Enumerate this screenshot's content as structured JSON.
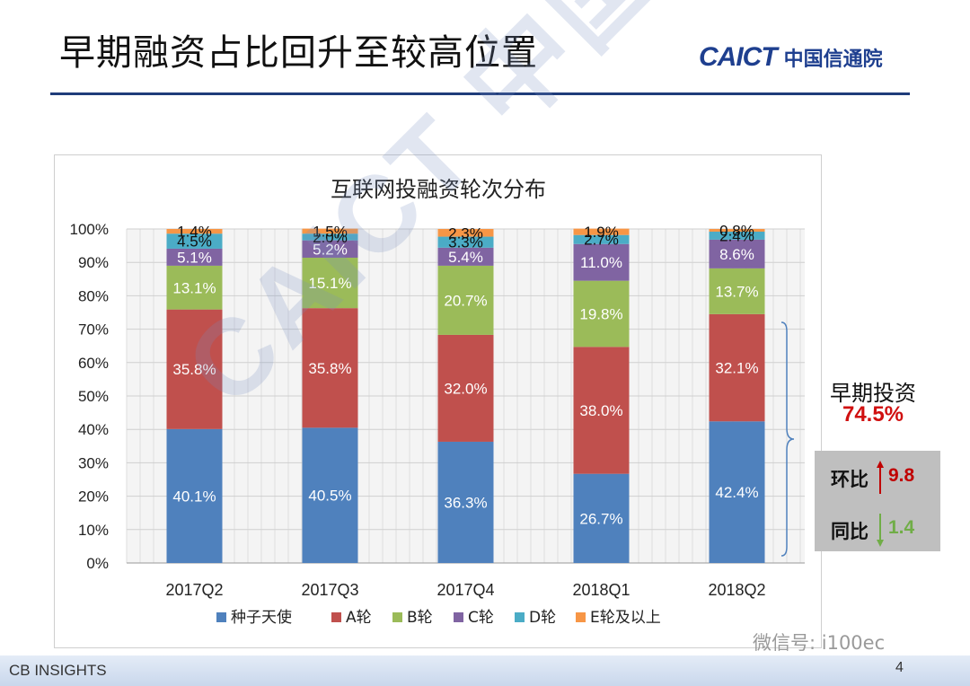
{
  "slide": {
    "title": "早期融资占比回升至较高位置",
    "logo_en": "CAICT",
    "logo_cn": "中国信通院",
    "watermark": "CAICT 中国信通院",
    "page_number": "4",
    "wechat": "微信号: i100ec",
    "footer_logo": "CB INSIGHTS"
  },
  "callout": {
    "label": "早期投资",
    "value": "74.5%",
    "qoq_label": "环比",
    "qoq_value": "9.8",
    "yoy_label": "同比",
    "yoy_value": "1.4"
  },
  "colors": {
    "seed": "#4f81bd",
    "a": "#c0504d",
    "b": "#9bbb59",
    "c": "#8064a2",
    "d": "#4bacc6",
    "e": "#f79646",
    "qoq": "#c00000",
    "yoy": "#70ad47"
  },
  "chart_data": {
    "type": "bar",
    "stacked": true,
    "title": "互联网投融资轮次分布",
    "categories": [
      "2017Q2",
      "2017Q3",
      "2017Q4",
      "2018Q1",
      "2018Q2"
    ],
    "y_ticks": [
      "0%",
      "10%",
      "20%",
      "30%",
      "40%",
      "50%",
      "60%",
      "70%",
      "80%",
      "90%",
      "100%"
    ],
    "ylim": [
      0,
      100
    ],
    "grid": true,
    "legend_position": "bottom",
    "series": [
      {
        "name": "种子天使",
        "color": "#4f81bd",
        "values": [
          40.1,
          40.5,
          36.3,
          26.7,
          42.4
        ],
        "labels": [
          "40.1%",
          "40.5%",
          "36.3%",
          "26.7%",
          "42.4%"
        ]
      },
      {
        "name": "A轮",
        "color": "#c0504d",
        "values": [
          35.8,
          35.8,
          32.0,
          38.0,
          32.1
        ],
        "labels": [
          "35.8%",
          "35.8%",
          "32.0%",
          "38.0%",
          "32.1%"
        ]
      },
      {
        "name": "B轮",
        "color": "#9bbb59",
        "values": [
          13.1,
          15.1,
          20.7,
          19.8,
          13.7
        ],
        "labels": [
          "13.1%",
          "15.1%",
          "20.7%",
          "19.8%",
          "13.7%"
        ]
      },
      {
        "name": "C轮",
        "color": "#8064a2",
        "values": [
          5.1,
          5.2,
          5.4,
          11.0,
          8.6
        ],
        "labels": [
          "5.1%",
          "5.2%",
          "5.4%",
          "11.0%",
          "8.6%"
        ]
      },
      {
        "name": "D轮",
        "color": "#4bacc6",
        "values": [
          4.5,
          2.0,
          3.3,
          2.7,
          2.4
        ],
        "labels": [
          "4.5%",
          "2.0%",
          "3.3%",
          "2.7%",
          "2.4%"
        ]
      },
      {
        "name": "E轮及以上",
        "color": "#f79646",
        "values": [
          1.4,
          1.5,
          2.3,
          1.9,
          0.8
        ],
        "labels": [
          "1.4%",
          "1.5%",
          "2.3%",
          "1.9%",
          "0.8%"
        ]
      }
    ]
  }
}
